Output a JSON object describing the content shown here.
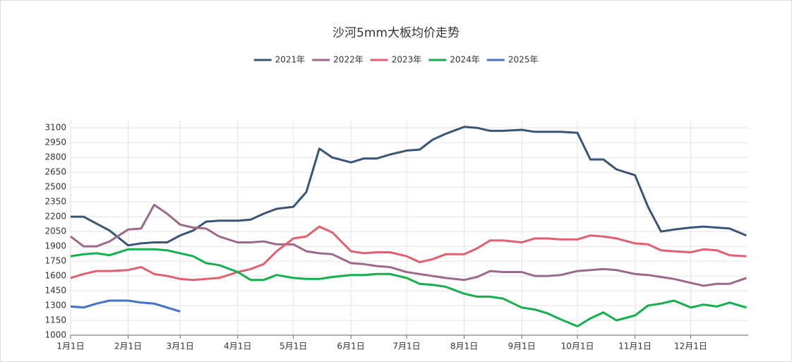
{
  "chart_data": {
    "type": "line",
    "title": "沙河5mm大板均价走势",
    "x": [
      "1月1日",
      "1月8日",
      "1月15日",
      "1月22日",
      "2月1日",
      "2月8日",
      "2月15日",
      "2月22日",
      "3月1日",
      "3月8日",
      "3月15日",
      "3月22日",
      "4月1日",
      "4月8日",
      "4月15日",
      "4月22日",
      "5月1日",
      "5月8日",
      "5月15日",
      "5月22日",
      "6月1日",
      "6月8日",
      "6月15日",
      "6月22日",
      "7月1日",
      "7月8日",
      "7月15日",
      "7月22日",
      "8月1日",
      "8月8日",
      "8月15日",
      "8月22日",
      "9月1日",
      "9月8日",
      "9月15日",
      "9月22日",
      "10月1日",
      "10月8日",
      "10月15日",
      "10月22日",
      "11月1日",
      "11月8日",
      "11月15日",
      "11月22日",
      "12月1日",
      "12月8日",
      "12月15日",
      "12月22日",
      "12月31日"
    ],
    "series": [
      {
        "name": "2021年",
        "color": "#3a5674",
        "values": [
          2200,
          2200,
          2130,
          2060,
          1910,
          1930,
          1940,
          1940,
          2010,
          2060,
          2150,
          2160,
          2160,
          2170,
          2230,
          2280,
          2300,
          2450,
          2890,
          2800,
          2750,
          2790,
          2790,
          2830,
          2870,
          2880,
          2980,
          3040,
          3110,
          3100,
          3070,
          3070,
          3080,
          3060,
          3060,
          3060,
          3050,
          2780,
          2780,
          2680,
          2620,
          2300,
          2050,
          2070,
          2090,
          2100,
          2090,
          2080,
          2010
        ]
      },
      {
        "name": "2022年",
        "color": "#9b6a8a",
        "values": [
          2000,
          1900,
          1900,
          1950,
          2070,
          2080,
          2320,
          2230,
          2120,
          2090,
          2080,
          2000,
          1940,
          1940,
          1950,
          1920,
          1920,
          1850,
          1830,
          1820,
          1730,
          1720,
          1700,
          1690,
          1640,
          1620,
          1600,
          1580,
          1560,
          1590,
          1650,
          1640,
          1640,
          1600,
          1600,
          1610,
          1650,
          1660,
          1670,
          1660,
          1620,
          1610,
          1590,
          1570,
          1530,
          1500,
          1520,
          1520,
          1580
        ]
      },
      {
        "name": "2023年",
        "color": "#e06070",
        "values": [
          1580,
          1620,
          1650,
          1650,
          1660,
          1690,
          1620,
          1600,
          1570,
          1560,
          1570,
          1580,
          1640,
          1670,
          1720,
          1850,
          1980,
          2000,
          2100,
          2040,
          1850,
          1830,
          1840,
          1840,
          1800,
          1740,
          1770,
          1820,
          1820,
          1880,
          1960,
          1960,
          1940,
          1980,
          1980,
          1970,
          1970,
          2010,
          2000,
          1980,
          1930,
          1920,
          1860,
          1850,
          1840,
          1870,
          1860,
          1810,
          1800
        ]
      },
      {
        "name": "2024年",
        "color": "#14b04e",
        "values": [
          1800,
          1820,
          1830,
          1810,
          1870,
          1870,
          1870,
          1860,
          1830,
          1800,
          1730,
          1710,
          1640,
          1560,
          1560,
          1610,
          1580,
          1570,
          1570,
          1590,
          1610,
          1610,
          1620,
          1620,
          1580,
          1520,
          1510,
          1490,
          1420,
          1390,
          1390,
          1370,
          1280,
          1260,
          1220,
          1160,
          1090,
          1170,
          1230,
          1150,
          1200,
          1300,
          1320,
          1350,
          1280,
          1310,
          1290,
          1330,
          1280
        ]
      },
      {
        "name": "2025年",
        "color": "#4472c4",
        "values": [
          1290,
          1280,
          1320,
          1350,
          1350,
          1330,
          1320,
          1280,
          1240,
          null,
          null,
          null,
          null,
          null,
          null,
          null,
          null,
          null,
          null,
          null,
          null,
          null,
          null,
          null,
          null,
          null,
          null,
          null,
          null,
          null,
          null,
          null,
          null,
          null,
          null,
          null,
          null,
          null,
          null,
          null,
          null,
          null,
          null,
          null,
          null,
          null,
          null,
          null,
          null
        ]
      }
    ],
    "xticks": [
      "1月1日",
      "2月1日",
      "3月1日",
      "4月1日",
      "5月1日",
      "6月1日",
      "7月1日",
      "8月1日",
      "9月1日",
      "10月1日",
      "11月1日",
      "12月1日"
    ],
    "ylim": [
      1000,
      3180
    ],
    "yticks": [
      1000,
      1150,
      1300,
      1450,
      1600,
      1750,
      1900,
      2050,
      2200,
      2350,
      2500,
      2650,
      2800,
      2950,
      3100
    ],
    "grid": true
  }
}
